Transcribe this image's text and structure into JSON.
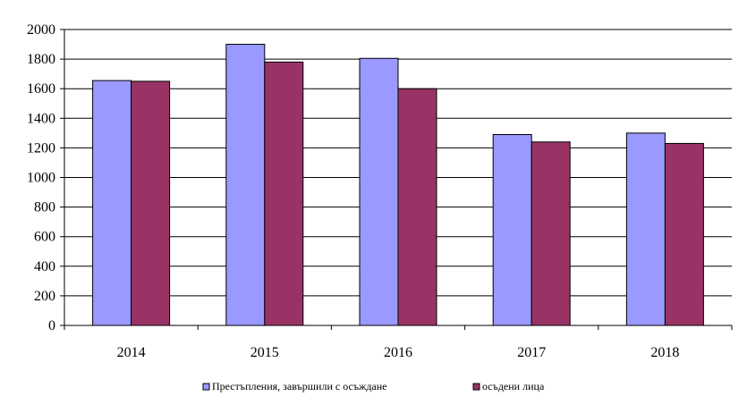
{
  "chart_data": {
    "type": "bar",
    "categories": [
      "2014",
      "2015",
      "2016",
      "2017",
      "2018"
    ],
    "series": [
      {
        "name": "Престъпления, завършили с осъждане",
        "color": "#9999ff",
        "values": [
          1655,
          1900,
          1805,
          1290,
          1300
        ]
      },
      {
        "name": "осъдени лица",
        "color": "#993366",
        "values": [
          1650,
          1780,
          1600,
          1240,
          1230
        ]
      }
    ],
    "ylim": [
      0,
      2000
    ],
    "yticks": [
      0,
      200,
      400,
      600,
      800,
      1000,
      1200,
      1400,
      1600,
      1800,
      2000
    ],
    "grid": true,
    "legend_position": "bottom"
  }
}
